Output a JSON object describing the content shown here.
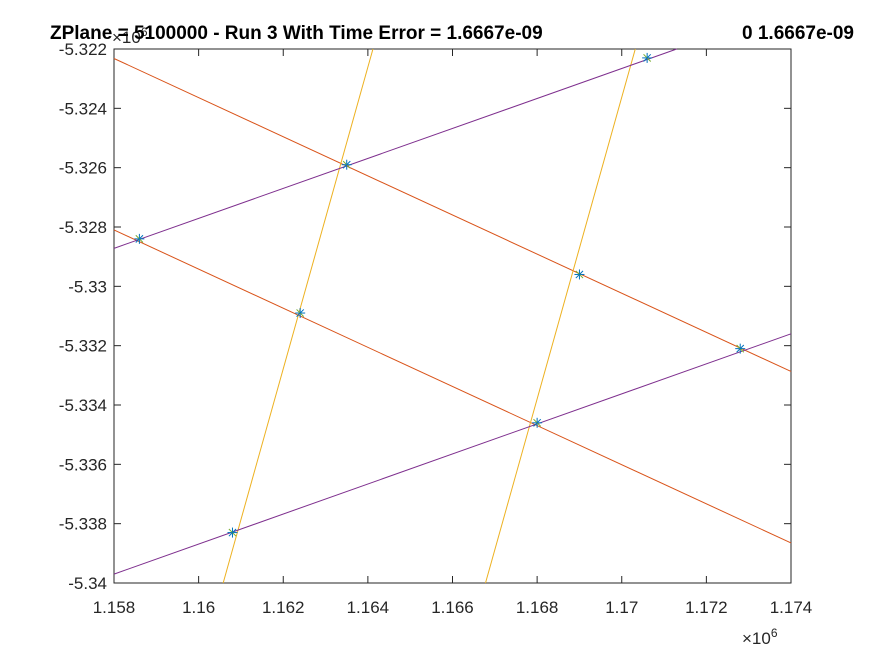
{
  "figure": {
    "title_main": "ZPlane = 5100000 - Run 3 With Time Error = 1.6667e-09",
    "title_right": "0  1.6667e-09"
  },
  "chart_data": {
    "type": "line",
    "title": "ZPlane = 5100000 - Run 3 With Time Error = 1.6667e-09",
    "xlim": [
      1.158,
      1.174
    ],
    "ylim": [
      -5.34,
      -5.322
    ],
    "x_exponent": {
      "base": "×10",
      "power": "6"
    },
    "y_exponent": {
      "base": "×10",
      "power": "6"
    },
    "x_ticks": [
      {
        "value": 1.158,
        "label": "1.158"
      },
      {
        "value": 1.16,
        "label": "1.16"
      },
      {
        "value": 1.162,
        "label": "1.162"
      },
      {
        "value": 1.164,
        "label": "1.164"
      },
      {
        "value": 1.166,
        "label": "1.166"
      },
      {
        "value": 1.168,
        "label": "1.168"
      },
      {
        "value": 1.17,
        "label": "1.17"
      },
      {
        "value": 1.172,
        "label": "1.172"
      },
      {
        "value": 1.174,
        "label": "1.174"
      }
    ],
    "y_ticks": [
      {
        "value": -5.322,
        "label": "-5.322"
      },
      {
        "value": -5.324,
        "label": "-5.324"
      },
      {
        "value": -5.326,
        "label": "-5.326"
      },
      {
        "value": -5.328,
        "label": "-5.328"
      },
      {
        "value": -5.33,
        "label": "-5.33"
      },
      {
        "value": -5.332,
        "label": "-5.332"
      },
      {
        "value": -5.334,
        "label": "-5.334"
      },
      {
        "value": -5.336,
        "label": "-5.336"
      },
      {
        "value": -5.338,
        "label": "-5.338"
      },
      {
        "value": -5.34,
        "label": "-5.34"
      }
    ],
    "grid": false,
    "legend": "none",
    "line_colors": {
      "orange": "#D95319",
      "yellow": "#EDB120",
      "purple": "#7E2F8E",
      "marker": "#0072BD",
      "marker_accent": "#77AC30"
    },
    "series": [
      {
        "color": "orange",
        "x": [
          1.158,
          1.174
        ],
        "y": [
          -5.32232,
          -5.33287
        ]
      },
      {
        "color": "orange",
        "x": [
          1.158,
          1.174
        ],
        "y": [
          -5.3281,
          -5.33865
        ]
      },
      {
        "color": "yellow",
        "x": [
          1.16058,
          1.16412
        ],
        "y": [
          -5.34,
          -5.322
        ]
      },
      {
        "color": "yellow",
        "x": [
          1.16678,
          1.17032
        ],
        "y": [
          -5.34,
          -5.322
        ]
      },
      {
        "color": "purple",
        "x": [
          1.158,
          1.1713
        ],
        "y": [
          -5.32872,
          -5.322
        ]
      },
      {
        "color": "purple",
        "x": [
          1.158,
          1.174
        ],
        "y": [
          -5.3397,
          -5.3316
        ]
      }
    ],
    "points": [
      {
        "x": 1.1586,
        "y": -5.3284
      },
      {
        "x": 1.1635,
        "y": -5.3259
      },
      {
        "x": 1.1706,
        "y": -5.3223
      },
      {
        "x": 1.1624,
        "y": -5.3309
      },
      {
        "x": 1.169,
        "y": -5.3296
      },
      {
        "x": 1.1728,
        "y": -5.3321
      },
      {
        "x": 1.168,
        "y": -5.3346
      },
      {
        "x": 1.1608,
        "y": -5.3383
      }
    ]
  }
}
